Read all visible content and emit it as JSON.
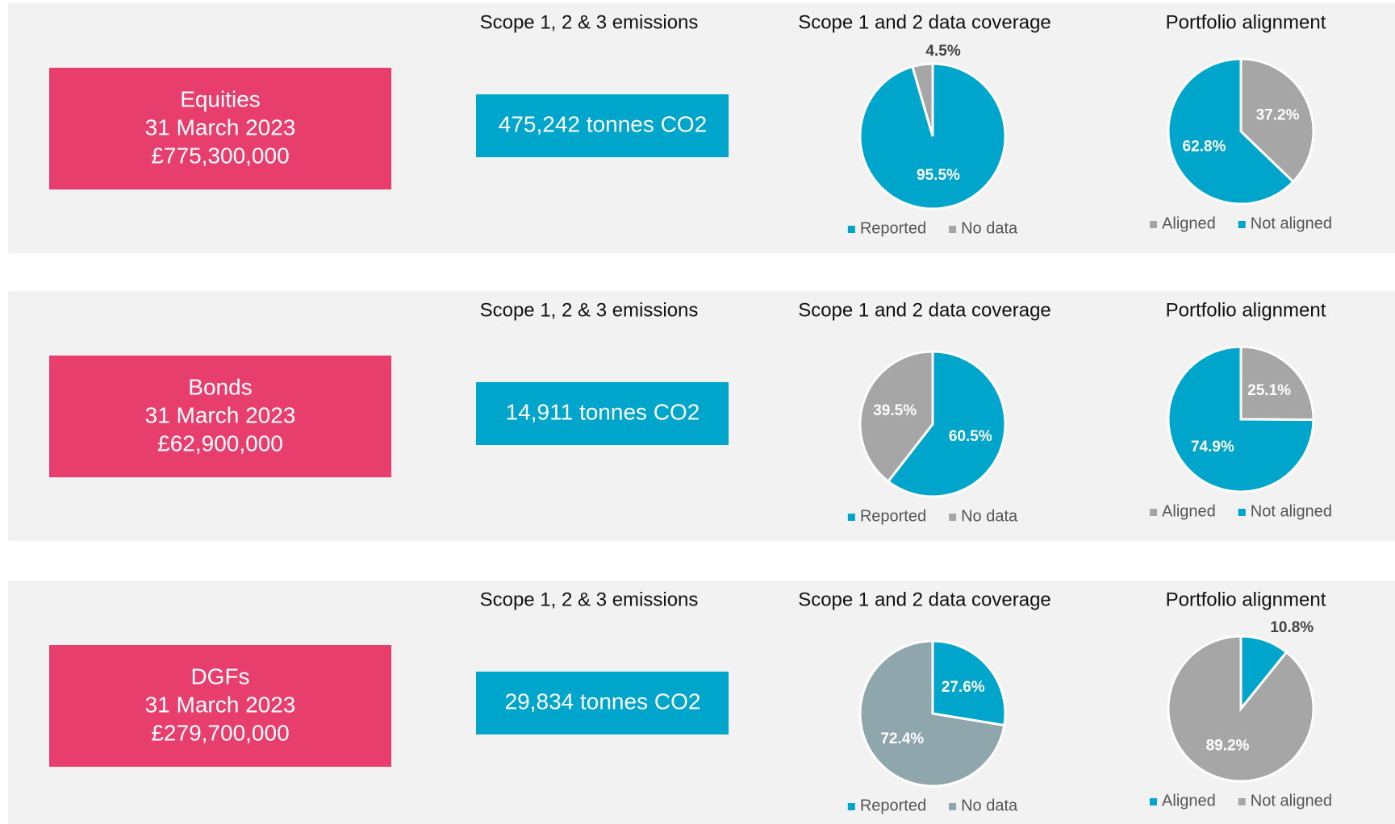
{
  "panels": [
    {
      "label": [
        "Equities",
        "31 March 2023",
        "£775,300,000"
      ],
      "emissions_title": "Scope 1, 2 & 3 emissions",
      "emissions": "475,242 tonnes CO2"
    },
    {
      "label": [
        "Bonds",
        "31 March 2023",
        "£62,900,000"
      ],
      "emissions_title": "Scope 1, 2 & 3 emissions",
      "emissions": "14,911 tonnes CO2"
    },
    {
      "label": [
        "DGFs",
        "31 March 2023",
        "£279,700,000"
      ],
      "emissions_title": "Scope 1, 2 & 3 emissions",
      "emissions": "29,834 tonnes CO2"
    }
  ],
  "chart_data": [
    {
      "type": "pie",
      "title": "Scope 1 and 2 data coverage",
      "categories": [
        "Reported",
        "No data"
      ],
      "values": [
        95.5,
        4.5
      ],
      "value_labels": [
        "95.5%",
        "4.5%"
      ],
      "colors": [
        "#00A5CB",
        "#A6A6A6"
      ]
    },
    {
      "type": "pie",
      "title": "Portfolio alignment",
      "categories": [
        "Aligned",
        "Not aligned"
      ],
      "values": [
        37.2,
        62.8
      ],
      "value_labels": [
        "37.2%",
        "62.8%"
      ],
      "colors": [
        "#A6A6A6",
        "#00A5CB"
      ]
    },
    {
      "type": "pie",
      "title": "Scope 1 and 2 data coverage",
      "categories": [
        "Reported",
        "No data"
      ],
      "values": [
        60.5,
        39.5
      ],
      "value_labels": [
        "60.5%",
        "39.5%"
      ],
      "colors": [
        "#00A5CB",
        "#A6A6A6"
      ]
    },
    {
      "type": "pie",
      "title": "Portfolio alignment",
      "categories": [
        "Aligned",
        "Not aligned"
      ],
      "values": [
        25.1,
        74.9
      ],
      "value_labels": [
        "25.1%",
        "74.9%"
      ],
      "colors": [
        "#A6A6A6",
        "#00A5CB"
      ]
    },
    {
      "type": "pie",
      "title": "Scope 1 and 2 data coverage",
      "categories": [
        "Reported",
        "No data"
      ],
      "values": [
        27.6,
        72.4
      ],
      "value_labels": [
        "27.6%",
        "72.4%"
      ],
      "colors": [
        "#00A5CB",
        "#8FA7AC"
      ]
    },
    {
      "type": "pie",
      "title": "Portfolio alignment",
      "categories": [
        "Aligned",
        "Not aligned"
      ],
      "values": [
        10.8,
        89.2
      ],
      "value_labels": [
        "10.8%",
        "89.2%"
      ],
      "colors": [
        "#00A5CB",
        "#A6A6A6"
      ]
    }
  ]
}
